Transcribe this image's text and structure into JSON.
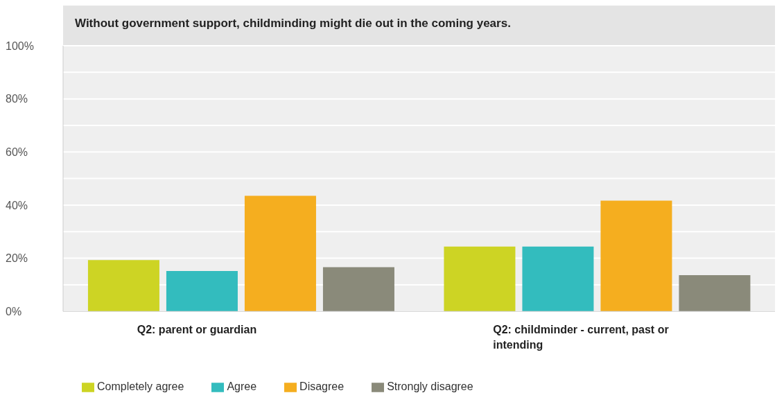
{
  "chart_data": {
    "type": "bar",
    "title": "Without government support, childminding might die out in the coming years.",
    "categories": [
      "Q2: parent or guardian",
      "Q2: childminder - current, past or intending"
    ],
    "series": [
      {
        "name": "Completely agree",
        "color": "#cdd424",
        "values": [
          19.3,
          24.4
        ]
      },
      {
        "name": "Agree",
        "color": "#33bcbe",
        "values": [
          15.2,
          24.4
        ]
      },
      {
        "name": "Disagree",
        "color": "#f5ae1f",
        "values": [
          43.5,
          41.7
        ]
      },
      {
        "name": "Strongly disagree",
        "color": "#8a8a7a",
        "values": [
          16.6,
          13.6
        ]
      }
    ],
    "ylim": [
      0,
      100
    ],
    "yticks": [
      {
        "value": 0,
        "label": "0%"
      },
      {
        "value": 10,
        "label": null
      },
      {
        "value": 20,
        "label": "20%"
      },
      {
        "value": 30,
        "label": null
      },
      {
        "value": 40,
        "label": "40%"
      },
      {
        "value": 50,
        "label": null
      },
      {
        "value": 60,
        "label": "60%"
      },
      {
        "value": 70,
        "label": null
      },
      {
        "value": 80,
        "label": "80%"
      },
      {
        "value": 90,
        "label": null
      },
      {
        "value": 100,
        "label": "100%"
      }
    ],
    "grid": "y",
    "legend": "bottom"
  }
}
